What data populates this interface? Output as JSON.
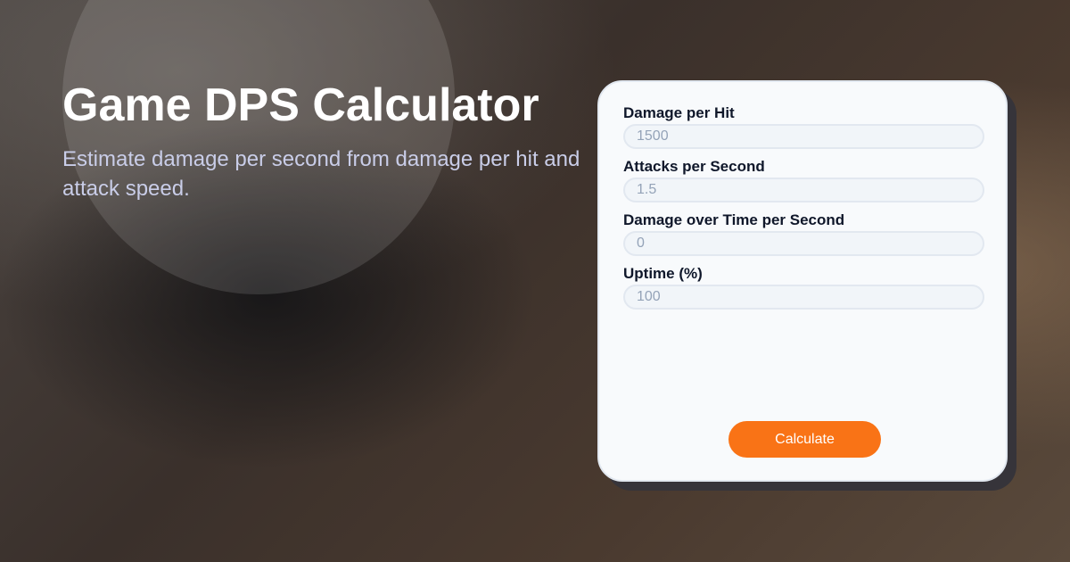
{
  "header": {
    "title": "Game DPS Calculator",
    "subtitle": "Estimate damage per second from damage per hit and attack speed."
  },
  "form": {
    "fields": [
      {
        "label": "Damage per Hit",
        "placeholder": "1500"
      },
      {
        "label": "Attacks per Second",
        "placeholder": "1.5"
      },
      {
        "label": "Damage over Time per Second",
        "placeholder": "0"
      },
      {
        "label": "Uptime (%)",
        "placeholder": "100"
      }
    ],
    "submit_label": "Calculate"
  },
  "colors": {
    "accent": "#f97316",
    "card": "#f8fafc",
    "text": "#0f172a"
  }
}
